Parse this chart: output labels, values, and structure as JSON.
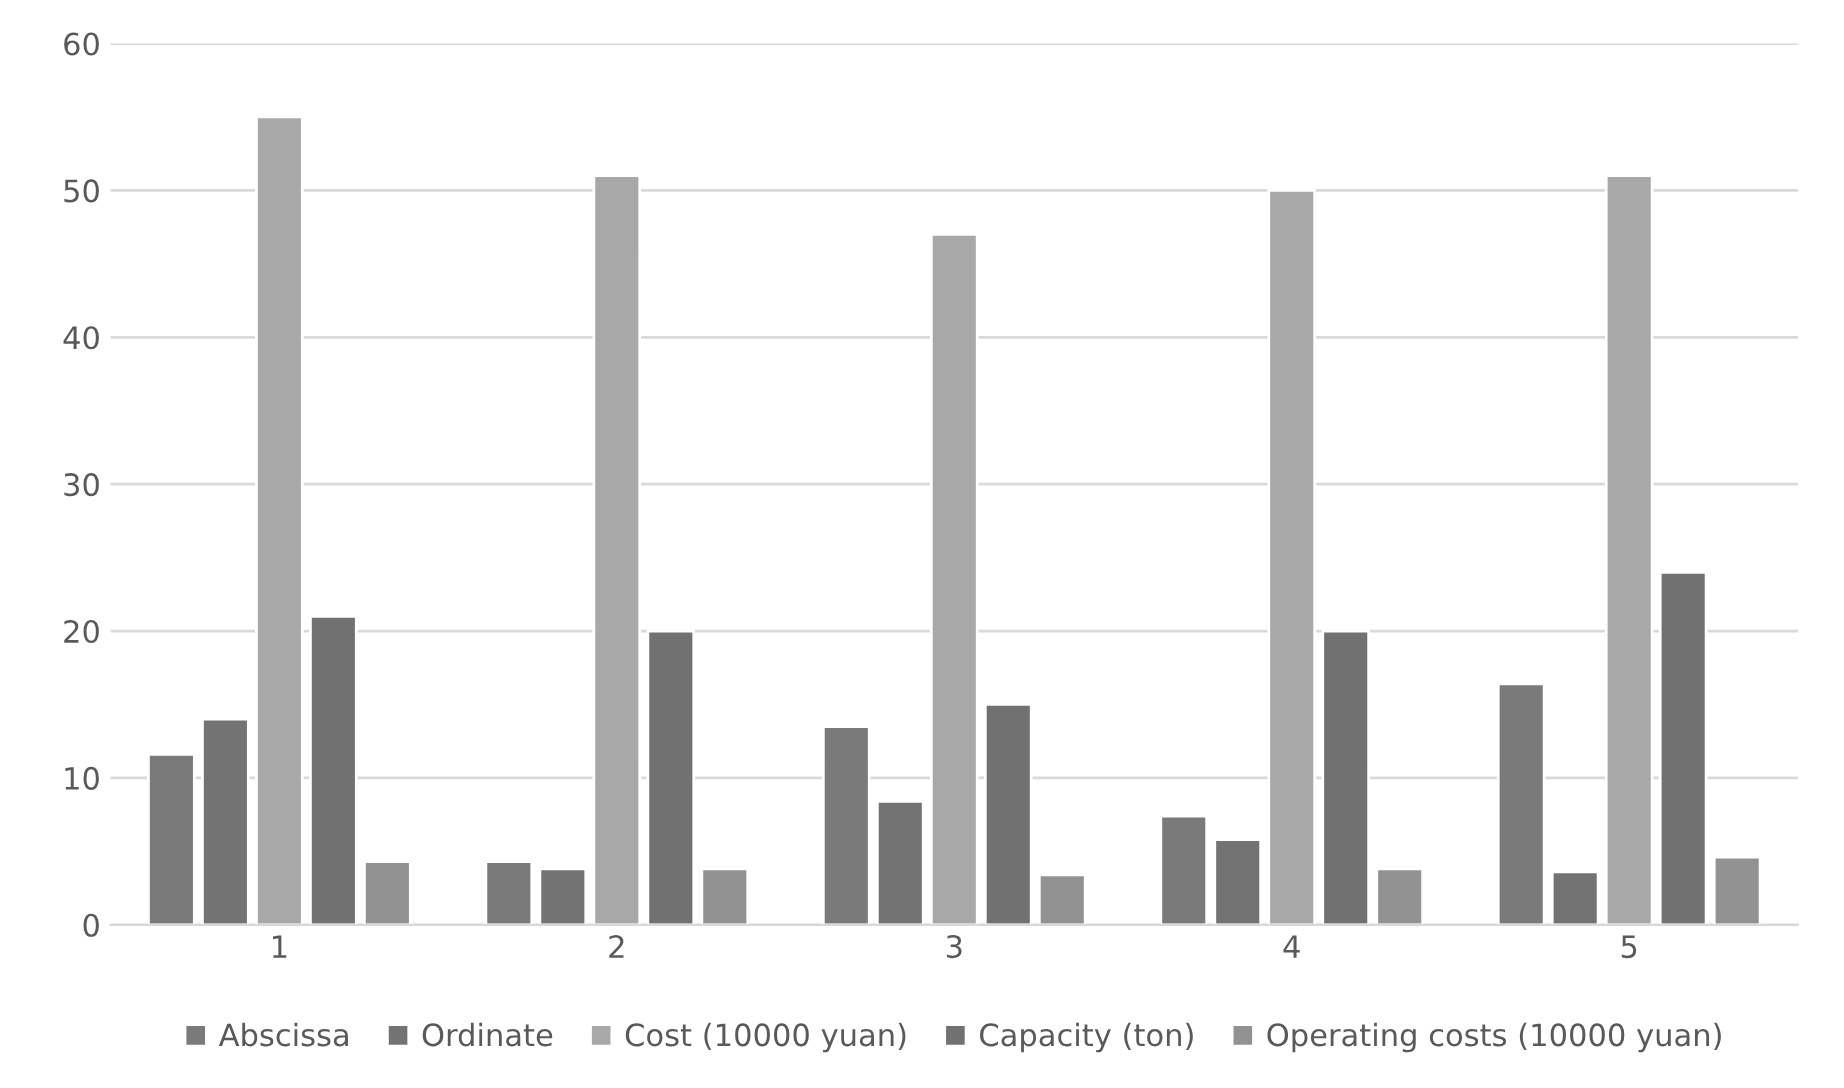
{
  "chart_data": {
    "type": "bar",
    "categories": [
      "1",
      "2",
      "3",
      "4",
      "5"
    ],
    "series": [
      {
        "name": "Abscissa",
        "color": "#7a7a7a",
        "values": [
          11.6,
          4.3,
          13.5,
          7.4,
          16.4
        ]
      },
      {
        "name": "Ordinate",
        "color": "#737373",
        "values": [
          14.0,
          3.8,
          8.4,
          5.8,
          3.6
        ]
      },
      {
        "name": "Cost (10000 yuan)",
        "color": "#a8a8a8",
        "values": [
          55,
          51,
          47,
          50,
          51
        ]
      },
      {
        "name": "Capacity (ton)",
        "color": "#717171",
        "values": [
          21,
          20,
          15,
          20,
          24
        ]
      },
      {
        "name": "Operating costs (10000 yuan)",
        "color": "#929292",
        "values": [
          4.3,
          3.8,
          3.4,
          3.8,
          4.6
        ]
      }
    ],
    "ylim": [
      0,
      60
    ],
    "yticks": [
      0,
      10,
      20,
      30,
      40,
      50,
      60
    ],
    "grid": "y",
    "legend": "bottom"
  }
}
